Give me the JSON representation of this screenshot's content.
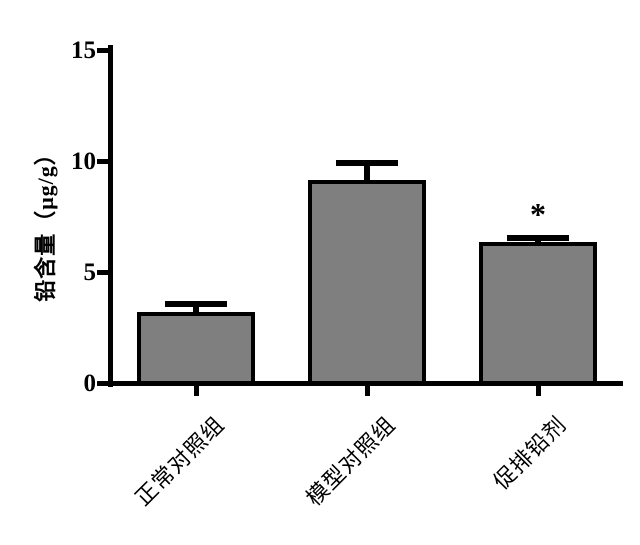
{
  "chart_data": {
    "type": "bar",
    "title": "",
    "xlabel": "",
    "ylabel": "铅含量（μg/g）",
    "categories": [
      "正常对照组",
      "模型对照组",
      "促排铅剂"
    ],
    "values": [
      3.15,
      9.1,
      6.3
    ],
    "errors": [
      0.35,
      0.75,
      0.2
    ],
    "error_bar_style": "upper-only with caps",
    "annotations": [
      {
        "category_index": 2,
        "text": "*"
      }
    ],
    "ylim": [
      0,
      15
    ],
    "yticks": [
      0,
      5,
      10,
      15
    ],
    "grid": false,
    "legend": "none",
    "colors": {
      "bar_fill": "#7f7f7f",
      "bar_edge": "#000000",
      "axis": "#000000",
      "text": "#000000",
      "background": "#ffffff"
    }
  }
}
